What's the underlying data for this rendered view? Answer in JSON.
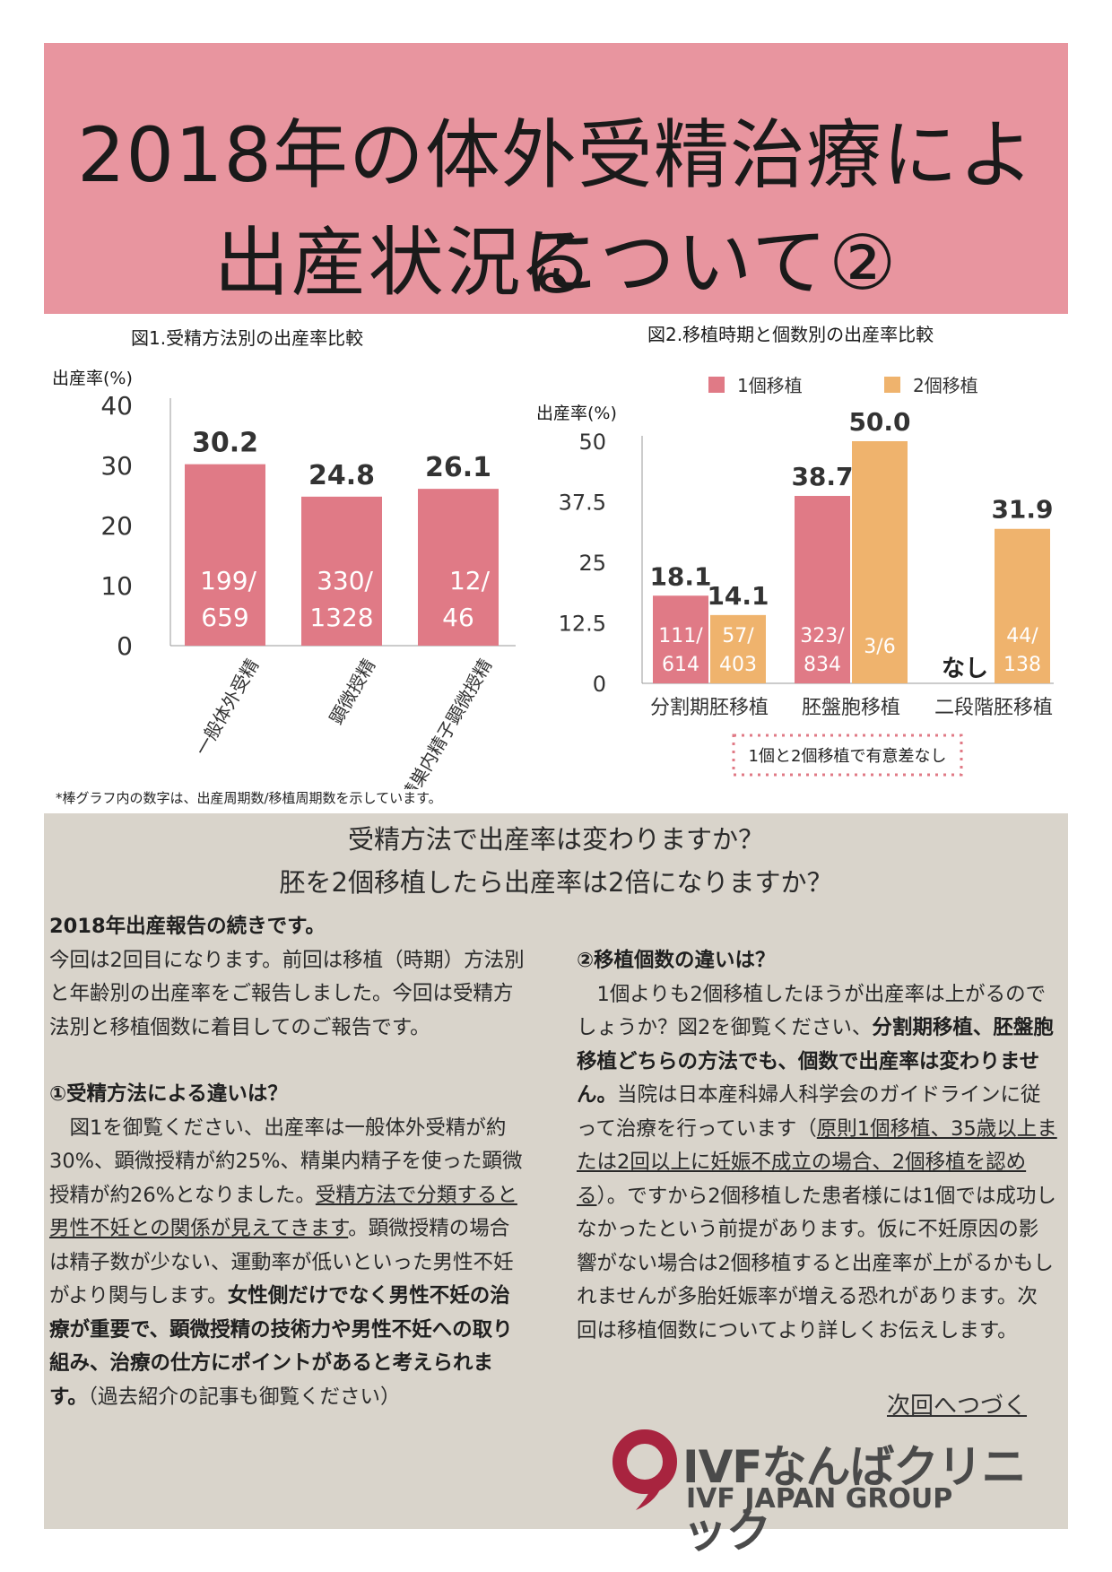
{
  "header": {
    "title_line1": "2018年の体外受精治療による",
    "title_line2": "出産状況について②",
    "bg_color": "#e8959f"
  },
  "chart_data": [
    {
      "type": "bar",
      "title": "図1.受精方法別の出産率比較",
      "ylabel": "出産率(%)",
      "ylim": [
        0,
        40
      ],
      "yticks": [
        "40",
        "30",
        "20",
        "10",
        "0"
      ],
      "categories": [
        "一般体外受精",
        "顕微授精",
        "精巣内精子顕微授精"
      ],
      "values": [
        30.2,
        24.8,
        26.1
      ],
      "value_labels": [
        "30.2",
        "24.8",
        "26.1"
      ],
      "bar_labels": [
        [
          "199/",
          "659"
        ],
        [
          "330/",
          "1328"
        ],
        [
          "12/",
          "46"
        ]
      ],
      "color": "#e07a86"
    },
    {
      "type": "bar",
      "title": "図2.移植時期と個数別の出産率比較",
      "ylabel": "出産率(%)",
      "ylim": [
        0,
        50
      ],
      "yticks": [
        "50",
        "37.5",
        "25",
        "12.5",
        "0"
      ],
      "categories": [
        "分割期胚移植",
        "胚盤胞移植",
        "二段階胚移植"
      ],
      "series": [
        {
          "name": "1個移植",
          "color": "#e07a86",
          "values": [
            18.1,
            38.7,
            null
          ],
          "value_labels": [
            "18.1",
            "38.7",
            "なし"
          ],
          "bar_labels": [
            [
              "111/",
              "614"
            ],
            [
              "323/",
              "834"
            ],
            [
              "",
              ""
            ]
          ]
        },
        {
          "name": "2個移植",
          "color": "#efb36d",
          "values": [
            14.1,
            50.0,
            31.9
          ],
          "value_labels": [
            "14.1",
            "50.0",
            "31.9"
          ],
          "bar_labels": [
            [
              "57/",
              "403"
            ],
            [
              "3/6",
              ""
            ],
            [
              "44/",
              "138"
            ]
          ]
        }
      ],
      "legend": "top",
      "annotation": "1個と2個移植で有意差なし"
    }
  ],
  "footnote": "*棒グラフ内の数字は、出産周期数/移植周期数を示しています。",
  "questions": {
    "q1": "受精方法で出産率は変わりますか？",
    "q2": "胚を2個移植したら出産率は2倍になりますか？"
  },
  "left_col": {
    "heading": "2018年出産報告の続きです。",
    "intro": " 今回は2回目になります。前回は移植（時期）方法別と年齢別の出産率をご報告しました。今回は受精方法別と移植個数に着目してのご報告です。",
    "sub1": "①受精方法による違いは？",
    "p1a": "　図1を御覧ください、出産率は一般体外受精が約30%、顕微授精が約25%、精巣内精子を使った顕微授精が約26%となりました。",
    "p1u": "受精方法で分類すると男性不妊との関係が見えてきます",
    "p1b": "。顕微授精の場合は精子数が少ない、運動率が低いといった男性不妊がより関与します。",
    "p1bold": "女性側だけでなく男性不妊の治療が重要で、顕微授精の技術力や男性不妊への取り組み、治療の仕方にポイントがあると考えられます。",
    "p1end": "（過去紹介の記事も御覧ください）"
  },
  "right_col": {
    "sub2": "②移植個数の違いは？",
    "p2a": "　1個よりも2個移植したほうが出産率は上がるのでしょうか？図2を御覧ください、",
    "p2bold": "分割期移植、胚盤胞移植どちらの方法でも、個数で出産率は変わりません。",
    "p2b": "当院は日本産科婦人科学会のガイドラインに従って治療を行っています（",
    "p2u": "原則1個移植、35歳以上または2回以上に妊娠不成立の場合、2個移植を認める",
    "p2c": "）。ですから2個移植した患者様には1個では成功しなかったという前提があります。仮に不妊原因の影響がない場合は2個移植すると出産率が上がるかもしれませんが多胎妊娠率が増える恐れがあります。次回は移植個数についてより詳しくお伝えします。",
    "next": "次回へつづく"
  },
  "logo": {
    "name": "IVFなんばクリニック",
    "group": "IVF JAPAN GROUP",
    "color": "#a8243f",
    "text_color": "#4a4a4a"
  }
}
